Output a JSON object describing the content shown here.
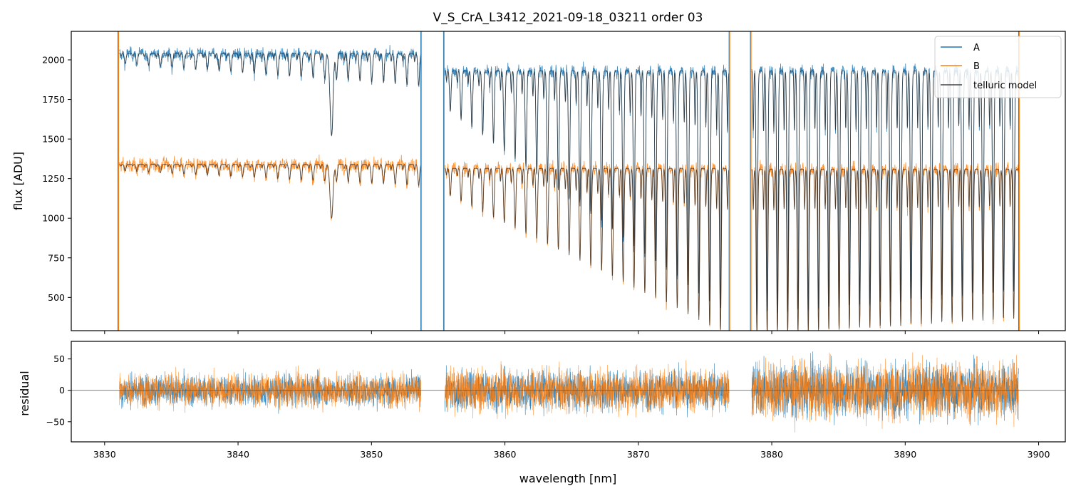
{
  "chart_data": [
    {
      "type": "line",
      "title": "V_S_CrA_L3412_2021-09-18_03211  order 03",
      "xlabel": "",
      "ylabel": "flux [ADU]",
      "xlim": [
        3827.5,
        3902.0
      ],
      "ylim": [
        290,
        2180
      ],
      "xticks": [
        3830,
        3840,
        3850,
        3860,
        3870,
        3880,
        3890,
        3900
      ],
      "xtick_labels_shown": false,
      "yticks": [
        500,
        750,
        1000,
        1250,
        1500,
        1750,
        2000
      ],
      "ytick_labels": [
        "500",
        "750",
        "1000",
        "1250",
        "1500",
        "1750",
        "2000"
      ],
      "legend": {
        "position": "top-right",
        "entries": [
          "A",
          "B",
          "telluric model"
        ]
      },
      "segments": [
        {
          "x": [
            3831.1,
            3853.7
          ],
          "A_level": 2040,
          "B_level": 1340,
          "line_spacing": 0.88,
          "depth": [
            0.03,
            0.1
          ],
          "strong_lines": [
            {
              "x": 3847.0,
              "depth": 0.25
            }
          ]
        },
        {
          "x": [
            3855.5,
            3876.8
          ],
          "A_level": 1930,
          "B_level": 1315,
          "line_spacing": 0.81,
          "depth": [
            0.12,
            0.8
          ]
        },
        {
          "x": [
            3878.5,
            3898.5
          ],
          "A_level": 1930,
          "B_level": 1310,
          "line_spacing": 0.77,
          "depth": [
            0.8,
            0.72
          ]
        }
      ],
      "edge_spikes": [
        3831.0,
        3853.7,
        3855.4,
        3876.8,
        3878.4,
        3898.5
      ],
      "series": [
        {
          "name": "A",
          "color": "#1f77b4"
        },
        {
          "name": "B",
          "color": "#ff7f0e"
        },
        {
          "name": "telluric model",
          "color": "#2b2b2b"
        }
      ]
    },
    {
      "type": "line",
      "title": "",
      "xlabel": "wavelength [nm]",
      "ylabel": "residual",
      "xlim": [
        3827.5,
        3902.0
      ],
      "ylim": [
        -82,
        78
      ],
      "xticks": [
        3830,
        3840,
        3850,
        3860,
        3870,
        3880,
        3890,
        3900
      ],
      "xtick_labels": [
        "3830",
        "3840",
        "3850",
        "3860",
        "3870",
        "3880",
        "3890",
        "3900"
      ],
      "yticks": [
        -50,
        0,
        50
      ],
      "ytick_labels": [
        "−50",
        "0",
        "50"
      ],
      "zero_line": 0,
      "segments": [
        {
          "x": [
            3831.1,
            3853.7
          ],
          "noise_amplitude": 25
        },
        {
          "x": [
            3855.5,
            3876.8
          ],
          "noise_amplitude": 32
        },
        {
          "x": [
            3878.5,
            3898.5
          ],
          "noise_amplitude": 42
        }
      ],
      "series": [
        {
          "name": "A",
          "color": "#1f77b4"
        },
        {
          "name": "B",
          "color": "#ff7f0e"
        }
      ]
    }
  ]
}
